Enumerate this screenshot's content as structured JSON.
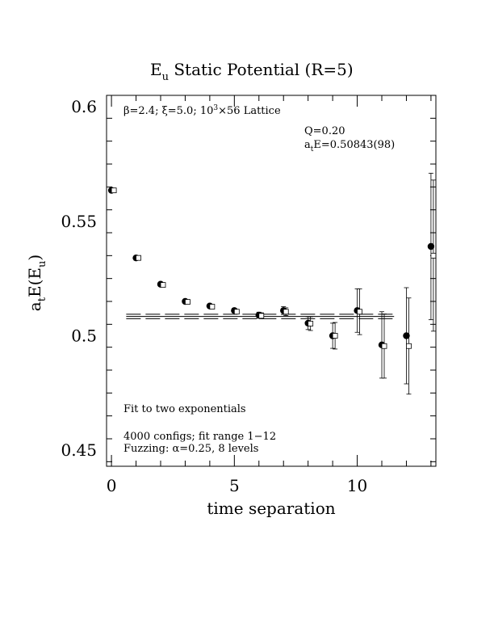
{
  "chart_data": {
    "type": "scatter",
    "title": "E",
    "title_sub": "u",
    "title_rest": " Static Potential (R=5)",
    "xlabel": "time separation",
    "ylabel_main": "a",
    "ylabel_sub_t": "t",
    "ylabel_mid": "E(E",
    "ylabel_sub_u": "u",
    "ylabel_end": ")",
    "xlim": [
      -0.2,
      13.2
    ],
    "ylim": [
      0.443,
      0.605
    ],
    "x_ticks": [
      0,
      5,
      10
    ],
    "x_tick_labels": [
      "0",
      "5",
      "10"
    ],
    "y_ticks": [
      0.45,
      0.5,
      0.55,
      0.6
    ],
    "y_tick_labels": [
      "0.45",
      "0.5",
      "0.55",
      "0.6"
    ],
    "annotations": {
      "lattice_prefix": "β=2.4; ξ=5.0; 10",
      "lattice_sup": "3",
      "lattice_suffix": "×56 Lattice",
      "q_value": "Q=0.20",
      "fit_prefix": "a",
      "fit_sub": "t",
      "fit_suffix": "E=0.50843(98)",
      "fit_method": "Fit to two exponentials",
      "configs": "4000 configs; fit range 1−12",
      "fuzzing": "Fuzzing: α=0.25, 8 levels"
    },
    "fit": {
      "value": 0.50843,
      "error": 0.00098,
      "x_range": [
        0.6,
        11.5
      ]
    },
    "series": [
      {
        "marker": "filled-circle",
        "x": [
          0,
          1,
          2,
          3,
          4,
          5,
          6,
          7,
          8,
          9,
          10,
          11,
          12,
          13
        ],
        "y": [
          0.5635,
          0.534,
          0.5225,
          0.515,
          0.513,
          0.511,
          0.509,
          0.511,
          0.5055,
          0.5,
          0.511,
          0.496,
          0.5,
          0.539
        ],
        "err": [
          0.0005,
          0.0006,
          0.0007,
          0.0007,
          0.0008,
          0.001,
          0.0013,
          0.0017,
          0.0028,
          0.0055,
          0.0095,
          0.0145,
          0.021,
          0.032
        ]
      },
      {
        "marker": "open-square",
        "x": [
          0,
          1,
          2,
          3,
          4,
          5,
          6,
          7,
          8,
          9,
          10,
          11,
          12,
          13
        ],
        "y": [
          0.5635,
          0.534,
          0.5222,
          0.5148,
          0.5127,
          0.5105,
          0.5087,
          0.5105,
          0.5053,
          0.5,
          0.5105,
          0.4955,
          0.4955,
          0.535
        ],
        "err": [
          0.0005,
          0.0006,
          0.0007,
          0.0007,
          0.0008,
          0.001,
          0.0013,
          0.0017,
          0.003,
          0.0058,
          0.01,
          0.014,
          0.021,
          0.033
        ]
      }
    ]
  }
}
